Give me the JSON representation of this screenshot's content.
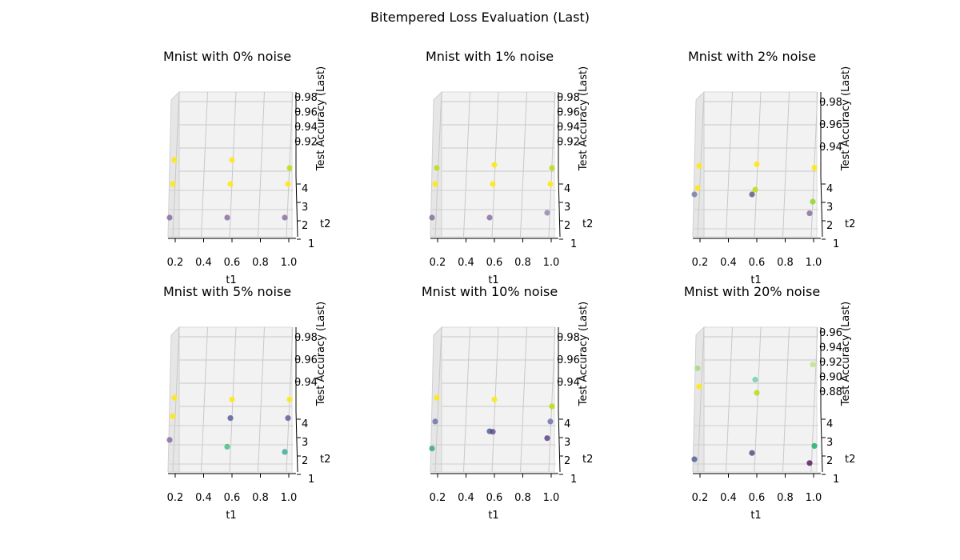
{
  "figure": {
    "title": "Bitempered Loss Evaluation (Last)"
  },
  "chart_data": [
    {
      "type": "scatter3d",
      "title": "Mnist with 0% noise",
      "xlabel": "t1",
      "ylabel": "t2",
      "zlabel": "Test Accuracy (Last)",
      "x_ticks": [
        "0.2",
        "0.4",
        "0.6",
        "0.8",
        "1.0"
      ],
      "y_ticks": [
        "1",
        "2",
        "3",
        "4"
      ],
      "z_ticks": [
        "0.92",
        "0.94",
        "0.96",
        "0.98"
      ],
      "xlim": [
        0.15,
        1.0
      ],
      "ylim": [
        1,
        4
      ],
      "zlim": [
        0.91,
        0.985
      ],
      "points": [
        {
          "t1": 0.2,
          "t2": 1,
          "acc": 0.948,
          "color": "#fde725"
        },
        {
          "t1": 0.6,
          "t2": 1,
          "acc": 0.948,
          "color": "#fde725"
        },
        {
          "t1": 1.0,
          "t2": 1,
          "acc": 0.943,
          "color": "#bddf26"
        },
        {
          "t1": 0.2,
          "t2": 2,
          "acc": 0.935,
          "color": "#fde725"
        },
        {
          "t1": 0.6,
          "t2": 2,
          "acc": 0.935,
          "color": "#fde725"
        },
        {
          "t1": 1.0,
          "t2": 2,
          "acc": 0.935,
          "color": "#fde725"
        },
        {
          "t1": 0.2,
          "t2": 4,
          "acc": 0.918,
          "color": "#7b5f96"
        },
        {
          "t1": 0.6,
          "t2": 4,
          "acc": 0.918,
          "color": "#7b5f96"
        },
        {
          "t1": 1.0,
          "t2": 4,
          "acc": 0.918,
          "color": "#7b5f96"
        }
      ]
    },
    {
      "type": "scatter3d",
      "title": "Mnist with 1% noise",
      "xlabel": "t1",
      "ylabel": "t2",
      "zlabel": "Test Accuracy (Last)",
      "x_ticks": [
        "0.2",
        "0.4",
        "0.6",
        "0.8",
        "1.0"
      ],
      "y_ticks": [
        "1",
        "2",
        "3",
        "4"
      ],
      "z_ticks": [
        "0.92",
        "0.94",
        "0.96",
        "0.98"
      ],
      "xlim": [
        0.15,
        1.0
      ],
      "ylim": [
        1,
        4
      ],
      "zlim": [
        0.91,
        0.985
      ],
      "points": [
        {
          "t1": 0.2,
          "t2": 1,
          "acc": 0.943,
          "color": "#bddf26"
        },
        {
          "t1": 0.6,
          "t2": 1,
          "acc": 0.945,
          "color": "#fde725"
        },
        {
          "t1": 1.0,
          "t2": 1,
          "acc": 0.943,
          "color": "#bddf26"
        },
        {
          "t1": 0.2,
          "t2": 2,
          "acc": 0.935,
          "color": "#fde725"
        },
        {
          "t1": 0.6,
          "t2": 2,
          "acc": 0.935,
          "color": "#fde725"
        },
        {
          "t1": 1.0,
          "t2": 2,
          "acc": 0.935,
          "color": "#fde725"
        },
        {
          "t1": 0.2,
          "t2": 4,
          "acc": 0.918,
          "color": "#7b5f96"
        },
        {
          "t1": 0.6,
          "t2": 4,
          "acc": 0.918,
          "color": "#7b5f96"
        },
        {
          "t1": 1.0,
          "t2": 4,
          "acc": 0.921,
          "color": "#8a78a8"
        }
      ]
    },
    {
      "type": "scatter3d",
      "title": "Mnist with 2% noise",
      "xlabel": "t1",
      "ylabel": "t2",
      "zlabel": "Test Accuracy (Last)",
      "x_ticks": [
        "0.2",
        "0.4",
        "0.6",
        "0.8",
        "1.0"
      ],
      "y_ticks": [
        "1",
        "2",
        "3",
        "4"
      ],
      "z_ticks": [
        "0.94",
        "0.96",
        "0.98"
      ],
      "xlim": [
        0.15,
        1.0
      ],
      "ylim": [
        1,
        4
      ],
      "zlim": [
        0.915,
        0.985
      ],
      "points": [
        {
          "t1": 0.2,
          "t2": 1,
          "acc": 0.947,
          "color": "#fde725"
        },
        {
          "t1": 0.6,
          "t2": 1,
          "acc": 0.948,
          "color": "#fde725"
        },
        {
          "t1": 1.0,
          "t2": 1,
          "acc": 0.946,
          "color": "#fde725"
        },
        {
          "t1": 0.2,
          "t2": 2,
          "acc": 0.936,
          "color": "#fde725"
        },
        {
          "t1": 0.6,
          "t2": 2,
          "acc": 0.935,
          "color": "#bddf26"
        },
        {
          "t1": 1.0,
          "t2": 2,
          "acc": 0.928,
          "color": "#9bd93c"
        },
        {
          "t1": 0.2,
          "t2": 4,
          "acc": 0.936,
          "color": "#6a6fa0"
        },
        {
          "t1": 0.6,
          "t2": 4,
          "acc": 0.936,
          "color": "#4b4b7a"
        },
        {
          "t1": 1.0,
          "t2": 4,
          "acc": 0.925,
          "color": "#7b5f96"
        }
      ]
    },
    {
      "type": "scatter3d",
      "title": "Mnist with 5% noise",
      "xlabel": "t1",
      "ylabel": "t2",
      "zlabel": "Test Accuracy (Last)",
      "x_ticks": [
        "0.2",
        "0.4",
        "0.6",
        "0.8",
        "1.0"
      ],
      "y_ticks": [
        "1",
        "2",
        "3",
        "4"
      ],
      "z_ticks": [
        "0.94",
        "0.96",
        "0.98"
      ],
      "xlim": [
        0.15,
        1.0
      ],
      "ylim": [
        1,
        4
      ],
      "zlim": [
        0.915,
        0.985
      ],
      "points": [
        {
          "t1": 0.2,
          "t2": 1,
          "acc": 0.949,
          "color": "#fde725"
        },
        {
          "t1": 0.6,
          "t2": 1,
          "acc": 0.948,
          "color": "#fde725"
        },
        {
          "t1": 1.0,
          "t2": 1,
          "acc": 0.948,
          "color": "#fde725"
        },
        {
          "t1": 0.2,
          "t2": 2,
          "acc": 0.94,
          "color": "#fde725"
        },
        {
          "t1": 0.6,
          "t2": 2,
          "acc": 0.939,
          "color": "#6a6fa0"
        },
        {
          "t1": 1.0,
          "t2": 2,
          "acc": 0.939,
          "color": "#6a6fa0"
        },
        {
          "t1": 0.2,
          "t2": 4,
          "acc": 0.93,
          "color": "#7b5f96"
        },
        {
          "t1": 0.6,
          "t2": 4,
          "acc": 0.926,
          "color": "#35b779"
        },
        {
          "t1": 1.0,
          "t2": 4,
          "acc": 0.923,
          "color": "#21a685"
        }
      ]
    },
    {
      "type": "scatter3d",
      "title": "Mnist with 10% noise",
      "xlabel": "t1",
      "ylabel": "t2",
      "zlabel": "Test Accuracy (Last)",
      "x_ticks": [
        "0.2",
        "0.4",
        "0.6",
        "0.8",
        "1.0"
      ],
      "y_ticks": [
        "1",
        "2",
        "3",
        "4"
      ],
      "z_ticks": [
        "0.94",
        "0.96",
        "0.98"
      ],
      "xlim": [
        0.15,
        1.0
      ],
      "ylim": [
        1,
        4
      ],
      "zlim": [
        0.915,
        0.985
      ],
      "points": [
        {
          "t1": 0.2,
          "t2": 1,
          "acc": 0.949,
          "color": "#fde725"
        },
        {
          "t1": 0.6,
          "t2": 1,
          "acc": 0.948,
          "color": "#fde725"
        },
        {
          "t1": 1.0,
          "t2": 1,
          "acc": 0.944,
          "color": "#bddf26"
        },
        {
          "t1": 0.2,
          "t2": 2,
          "acc": 0.937,
          "color": "#7b7fb0"
        },
        {
          "t1": 0.6,
          "t2": 2,
          "acc": 0.931,
          "color": "#7b5f96"
        },
        {
          "t1": 1.0,
          "t2": 2,
          "acc": 0.937,
          "color": "#7b7fb0"
        },
        {
          "t1": 0.2,
          "t2": 4,
          "acc": 0.925,
          "color": "#1f9e89"
        },
        {
          "t1": 0.6,
          "t2": 4,
          "acc": 0.935,
          "color": "#3b528b"
        },
        {
          "t1": 1.0,
          "t2": 4,
          "acc": 0.931,
          "color": "#472d7b"
        }
      ]
    },
    {
      "type": "scatter3d",
      "title": "Mnist with 20% noise",
      "xlabel": "t1",
      "ylabel": "t2",
      "zlabel": "Test Accuracy (Last)",
      "x_ticks": [
        "0.2",
        "0.4",
        "0.6",
        "0.8",
        "1.0"
      ],
      "y_ticks": [
        "1",
        "2",
        "3",
        "4"
      ],
      "z_ticks": [
        "0.88",
        "0.90",
        "0.92",
        "0.94",
        "0.96"
      ],
      "xlim": [
        0.15,
        1.0
      ],
      "ylim": [
        1,
        4
      ],
      "zlim": [
        0.87,
        0.965
      ],
      "points": [
        {
          "t1": 0.2,
          "t2": 1,
          "acc": 0.925,
          "color": "#fde725"
        },
        {
          "t1": 0.6,
          "t2": 1,
          "acc": 0.92,
          "color": "#bddf26"
        },
        {
          "t1": 1.0,
          "t2": 1,
          "acc": 0.878,
          "color": "#35b779"
        },
        {
          "t1": 0.2,
          "t2": 2,
          "acc": 0.942,
          "color": "#a8dc8a"
        },
        {
          "t1": 0.6,
          "t2": 2,
          "acc": 0.933,
          "color": "#7fd3b4"
        },
        {
          "t1": 1.0,
          "t2": 2,
          "acc": 0.945,
          "color": "#c6e58f"
        },
        {
          "t1": 0.2,
          "t2": 4,
          "acc": 0.875,
          "color": "#3b528b"
        },
        {
          "t1": 0.6,
          "t2": 4,
          "acc": 0.88,
          "color": "#46337e"
        },
        {
          "t1": 1.0,
          "t2": 4,
          "acc": 0.872,
          "color": "#440154"
        }
      ]
    }
  ]
}
